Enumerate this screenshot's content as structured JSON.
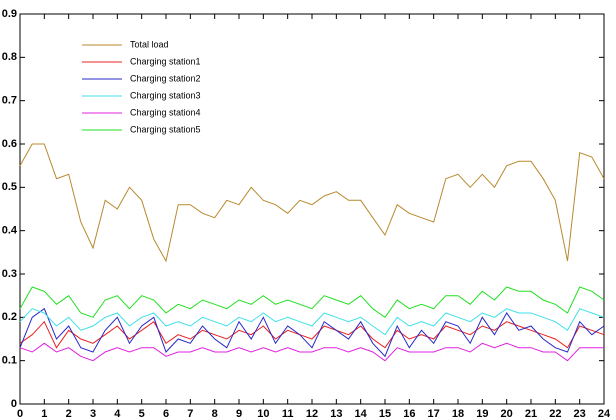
{
  "chart_data": {
    "type": "line",
    "x": [
      0,
      0.5,
      1,
      1.5,
      2,
      2.5,
      3,
      3.5,
      4,
      4.5,
      5,
      5.5,
      6,
      6.5,
      7,
      7.5,
      8,
      8.5,
      9,
      9.5,
      10,
      10.5,
      11,
      11.5,
      12,
      12.5,
      13,
      13.5,
      14,
      14.5,
      15,
      15.5,
      16,
      16.5,
      17,
      17.5,
      18,
      18.5,
      19,
      19.5,
      20,
      20.5,
      21,
      21.5,
      22,
      22.5,
      23,
      23.5,
      24
    ],
    "series": [
      {
        "name": "Total load",
        "color": "#b8892e",
        "values": [
          0.55,
          0.6,
          0.6,
          0.52,
          0.53,
          0.42,
          0.36,
          0.47,
          0.45,
          0.5,
          0.47,
          0.38,
          0.33,
          0.46,
          0.46,
          0.44,
          0.43,
          0.47,
          0.46,
          0.5,
          0.47,
          0.46,
          0.44,
          0.47,
          0.46,
          0.48,
          0.49,
          0.47,
          0.47,
          0.43,
          0.39,
          0.46,
          0.44,
          0.43,
          0.42,
          0.52,
          0.53,
          0.5,
          0.53,
          0.5,
          0.55,
          0.56,
          0.56,
          0.52,
          0.47,
          0.33,
          0.58,
          0.57,
          0.52
        ]
      },
      {
        "name": "Charging station1",
        "color": "#e82020",
        "values": [
          0.14,
          0.16,
          0.19,
          0.13,
          0.17,
          0.15,
          0.14,
          0.16,
          0.18,
          0.15,
          0.17,
          0.19,
          0.14,
          0.16,
          0.15,
          0.17,
          0.16,
          0.15,
          0.17,
          0.16,
          0.18,
          0.15,
          0.17,
          0.16,
          0.15,
          0.18,
          0.17,
          0.16,
          0.18,
          0.15,
          0.13,
          0.17,
          0.15,
          0.16,
          0.15,
          0.18,
          0.17,
          0.16,
          0.18,
          0.17,
          0.19,
          0.18,
          0.17,
          0.16,
          0.15,
          0.13,
          0.18,
          0.17,
          0.16
        ]
      },
      {
        "name": "Charging station2",
        "color": "#2828c8",
        "values": [
          0.13,
          0.2,
          0.22,
          0.15,
          0.18,
          0.13,
          0.12,
          0.17,
          0.2,
          0.14,
          0.18,
          0.2,
          0.12,
          0.15,
          0.14,
          0.18,
          0.15,
          0.13,
          0.19,
          0.15,
          0.2,
          0.14,
          0.18,
          0.16,
          0.13,
          0.19,
          0.17,
          0.15,
          0.19,
          0.14,
          0.11,
          0.18,
          0.13,
          0.17,
          0.14,
          0.19,
          0.18,
          0.14,
          0.2,
          0.16,
          0.21,
          0.17,
          0.18,
          0.15,
          0.13,
          0.12,
          0.19,
          0.16,
          0.18
        ]
      },
      {
        "name": "Charging station3",
        "color": "#40e0e8",
        "values": [
          0.19,
          0.22,
          0.21,
          0.18,
          0.2,
          0.17,
          0.18,
          0.2,
          0.21,
          0.18,
          0.2,
          0.21,
          0.18,
          0.19,
          0.18,
          0.2,
          0.19,
          0.18,
          0.2,
          0.19,
          0.21,
          0.19,
          0.2,
          0.19,
          0.18,
          0.21,
          0.2,
          0.19,
          0.2,
          0.18,
          0.16,
          0.2,
          0.18,
          0.19,
          0.18,
          0.21,
          0.2,
          0.19,
          0.21,
          0.2,
          0.22,
          0.21,
          0.21,
          0.2,
          0.19,
          0.17,
          0.22,
          0.21,
          0.2
        ]
      },
      {
        "name": "Charging station4",
        "color": "#e020e0",
        "values": [
          0.13,
          0.12,
          0.14,
          0.12,
          0.13,
          0.11,
          0.1,
          0.12,
          0.13,
          0.12,
          0.13,
          0.13,
          0.11,
          0.12,
          0.12,
          0.13,
          0.12,
          0.12,
          0.13,
          0.12,
          0.13,
          0.12,
          0.13,
          0.12,
          0.12,
          0.13,
          0.13,
          0.12,
          0.13,
          0.12,
          0.1,
          0.13,
          0.12,
          0.12,
          0.12,
          0.13,
          0.13,
          0.12,
          0.14,
          0.13,
          0.14,
          0.13,
          0.13,
          0.12,
          0.12,
          0.1,
          0.13,
          0.13,
          0.13
        ]
      },
      {
        "name": "Charging station5",
        "color": "#20e020",
        "values": [
          0.22,
          0.27,
          0.26,
          0.23,
          0.25,
          0.21,
          0.2,
          0.24,
          0.25,
          0.22,
          0.25,
          0.24,
          0.21,
          0.23,
          0.22,
          0.24,
          0.23,
          0.22,
          0.24,
          0.23,
          0.25,
          0.23,
          0.24,
          0.23,
          0.22,
          0.25,
          0.24,
          0.23,
          0.25,
          0.22,
          0.2,
          0.24,
          0.22,
          0.23,
          0.22,
          0.25,
          0.25,
          0.23,
          0.26,
          0.24,
          0.27,
          0.26,
          0.26,
          0.24,
          0.23,
          0.21,
          0.27,
          0.26,
          0.24
        ]
      }
    ],
    "xlim": [
      0,
      24
    ],
    "xticks": [
      0,
      1,
      2,
      3,
      4,
      5,
      6,
      7,
      8,
      9,
      10,
      11,
      12,
      13,
      14,
      15,
      16,
      17,
      18,
      19,
      20,
      21,
      22,
      23,
      24
    ],
    "ylim": [
      0,
      0.9
    ],
    "yticks": [
      0,
      0.1,
      0.2,
      0.3,
      0.4,
      0.5,
      0.6,
      0.7,
      0.8,
      0.9
    ],
    "grid": false,
    "legend": "upper left"
  }
}
